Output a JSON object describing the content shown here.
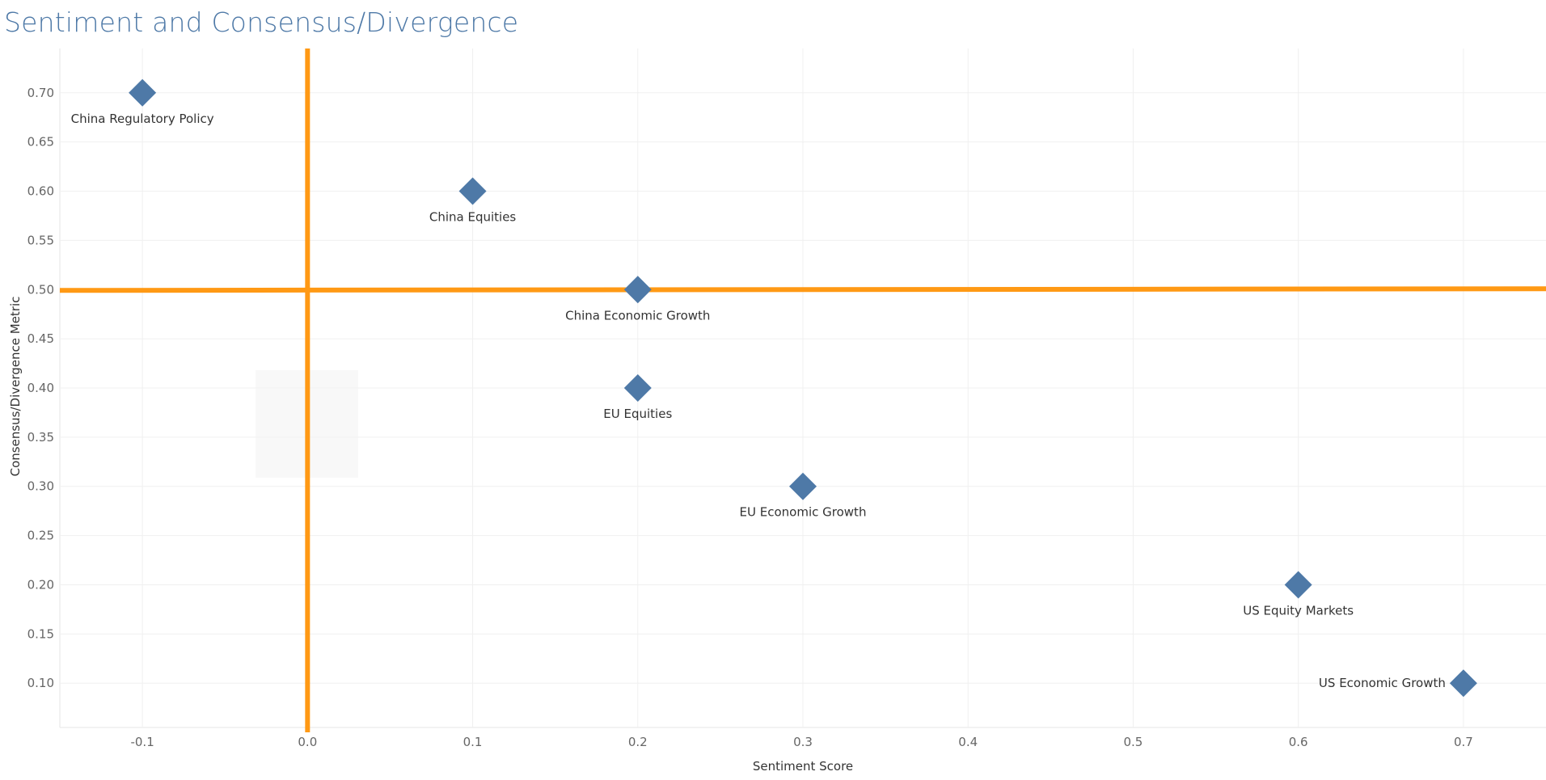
{
  "chart_data": {
    "type": "scatter",
    "title": "Sentiment and Consensus/Divergence",
    "xlabel": "Sentiment Score",
    "ylabel": "Consensus/Divergence Metric",
    "xlim": [
      -0.15,
      0.75
    ],
    "ylim": [
      0.055,
      0.745
    ],
    "x_ticks": [
      -0.1,
      0.0,
      0.1,
      0.2,
      0.3,
      0.4,
      0.5,
      0.6,
      0.7
    ],
    "x_tick_labels": [
      "-0.1",
      "0.0",
      "0.1",
      "0.2",
      "0.3",
      "0.4",
      "0.5",
      "0.6",
      "0.7"
    ],
    "y_ticks": [
      0.1,
      0.15,
      0.2,
      0.25,
      0.3,
      0.35,
      0.4,
      0.45,
      0.5,
      0.55,
      0.6,
      0.65,
      0.7
    ],
    "y_tick_labels": [
      "0.10",
      "0.15",
      "0.20",
      "0.25",
      "0.30",
      "0.35",
      "0.40",
      "0.45",
      "0.50",
      "0.55",
      "0.60",
      "0.65",
      "0.70"
    ],
    "grid": true,
    "marker": "diamond",
    "marker_color": "#4e79a7",
    "reference_lines": {
      "color": "#ff9914",
      "x": 0.0,
      "y": 0.5
    },
    "points": [
      {
        "label": "China Regulatory Policy",
        "x": -0.1,
        "y": 0.7,
        "label_pos": "below"
      },
      {
        "label": "China Equities",
        "x": 0.1,
        "y": 0.6,
        "label_pos": "below"
      },
      {
        "label": "China Economic Growth",
        "x": 0.2,
        "y": 0.5,
        "label_pos": "below"
      },
      {
        "label": "EU Equities",
        "x": 0.2,
        "y": 0.4,
        "label_pos": "below"
      },
      {
        "label": "EU Economic Growth",
        "x": 0.3,
        "y": 0.3,
        "label_pos": "below"
      },
      {
        "label": "US Equity Markets",
        "x": 0.6,
        "y": 0.2,
        "label_pos": "below"
      },
      {
        "label": "US Economic Growth",
        "x": 0.7,
        "y": 0.1,
        "label_pos": "left"
      }
    ]
  }
}
